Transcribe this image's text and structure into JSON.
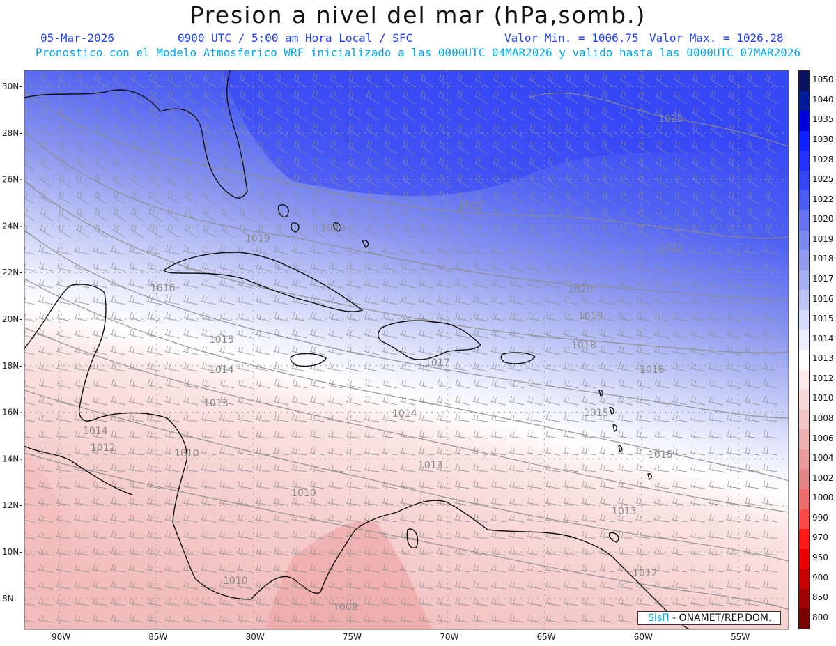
{
  "header": {
    "title": "Presion a nivel del mar (hPa,somb.)",
    "date": "05-Mar-2026",
    "time": "0900 UTC / 5:00 am Hora Local / SFC",
    "value_min": "Valor Min. = 1006.75",
    "value_max": "Valor Max. = 1026.28",
    "subtitle": "Pronostico con el Modelo Atmosferico WRF inicializado a las 0000UTC_04MAR2026 y valido hasta las  0000UTC_07MAR2026"
  },
  "map": {
    "y_ticks": [
      "30N",
      "28N",
      "26N",
      "24N",
      "22N",
      "20N",
      "18N",
      "16N",
      "14N",
      "12N",
      "10N",
      "8N"
    ],
    "x_ticks": [
      "90W",
      "85W",
      "80W",
      "75W",
      "70W",
      "65W",
      "60W",
      "55W"
    ],
    "contour_labels": [
      "1025",
      "1022",
      "1022",
      "1020",
      "1020",
      "1019",
      "1019",
      "1018",
      "1017",
      "1016",
      "1016",
      "1015",
      "1015",
      "1015",
      "1014",
      "1014",
      "1014",
      "1013",
      "1013",
      "1013",
      "1012",
      "1012",
      "1010",
      "1010",
      "1010",
      "1008"
    ],
    "land_color": "#111111",
    "grid_color": "#9a9a9a"
  },
  "colorbar": {
    "levels": [
      "1050",
      "1040",
      "1035",
      "1030",
      "1028",
      "1025",
      "1022",
      "1020",
      "1019",
      "1018",
      "1017",
      "1016",
      "1015",
      "1014",
      "1013",
      "1012",
      "1010",
      "1008",
      "1006",
      "1004",
      "1002",
      "1000",
      "990",
      "970",
      "950",
      "900",
      "850",
      "800"
    ],
    "colors": [
      "#0a1060",
      "#001b9a",
      "#0000d9",
      "#0f20ff",
      "#2233ff",
      "#3547f7",
      "#4b5df3",
      "#6473f1",
      "#7b88ef",
      "#919cf1",
      "#a7b0f3",
      "#bec4f6",
      "#d5d9fa",
      "#ebedfd",
      "#ffffff",
      "#fbe8e8",
      "#f7d8d8",
      "#f3c6c6",
      "#efb1b1",
      "#ea9b9b",
      "#e58585",
      "#ee6c6c",
      "#ff4a4a",
      "#ff1a1a",
      "#ee0000",
      "#c80000",
      "#a00000",
      "#7a0000"
    ]
  },
  "credit": {
    "brand": "SisΠ",
    "text": " - ONAMET/REP.DOM."
  }
}
